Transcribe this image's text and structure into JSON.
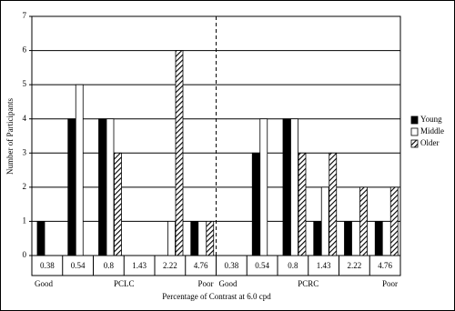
{
  "chart_data": {
    "type": "bar",
    "x_label": "Percentage of Contrast at 6.0 cpd",
    "y_label": "Number of Participants",
    "categories": [
      "0.38",
      "0.54",
      "0.8",
      "1.43",
      "2.22",
      "4.76",
      "0.38",
      "0.54",
      "0.8",
      "1.43",
      "2.22",
      "4.76"
    ],
    "group_labels": [
      "Good",
      "PCLC",
      "Poor",
      "Good",
      "PCRC",
      "Poor"
    ],
    "series": [
      {
        "name": "Young",
        "color": "#000000",
        "values": [
          1,
          4,
          4,
          0,
          0,
          1,
          0,
          3,
          4,
          1,
          1,
          1
        ]
      },
      {
        "name": "Middle",
        "color": "#ffffff",
        "values": [
          0,
          5,
          4,
          0,
          1,
          0,
          0,
          4,
          4,
          2,
          0,
          0
        ]
      },
      {
        "name": "Older",
        "color": "hatch",
        "values": [
          0,
          0,
          3,
          0,
          6,
          1,
          0,
          0,
          3,
          3,
          2,
          2
        ]
      }
    ],
    "ylim": [
      0,
      7
    ],
    "yticks": [
      0,
      1,
      2,
      3,
      4,
      5,
      6,
      7
    ],
    "grid": true,
    "legend": "right"
  }
}
